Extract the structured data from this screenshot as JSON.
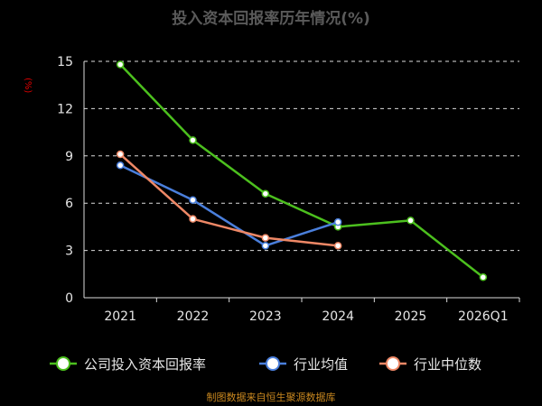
{
  "chart_data": {
    "type": "line",
    "title": "投入资本回报率历年情况(%)",
    "ylabel": "(%)",
    "categories": [
      "2021",
      "2022",
      "2023",
      "2024",
      "2025",
      "2026Q1"
    ],
    "yticks": [
      "15",
      "12",
      "9",
      "6",
      "3",
      "0"
    ],
    "ylim": [
      0,
      15
    ],
    "grid": true,
    "legend_position": "bottom",
    "series": [
      {
        "name": "公司投入资本回报率",
        "color": "#4cc01e",
        "values": [
          14.8,
          10.0,
          6.6,
          4.5,
          4.9,
          1.3
        ]
      },
      {
        "name": "行业均值",
        "color": "#4a7fdc",
        "values": [
          8.4,
          6.2,
          3.3,
          4.8,
          null,
          null
        ]
      },
      {
        "name": "行业中位数",
        "color": "#ee8866",
        "values": [
          9.1,
          5.0,
          3.8,
          3.3,
          null,
          null
        ]
      }
    ]
  },
  "source": "制图数据来自恒生聚源数据库"
}
